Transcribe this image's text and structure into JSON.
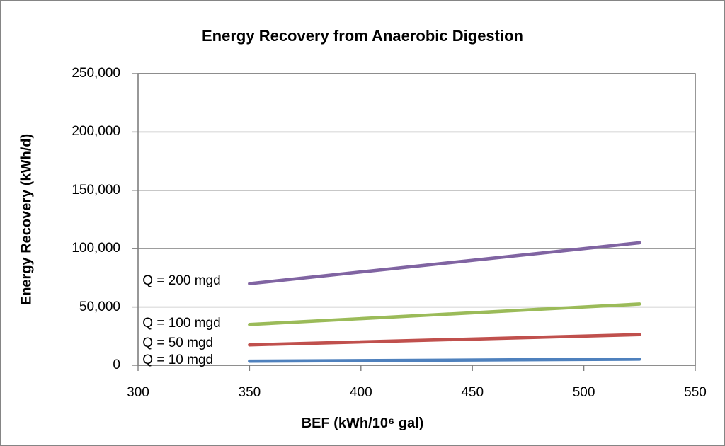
{
  "frame": {
    "background": "#ffffff",
    "border_color": "#858585"
  },
  "chart_data": {
    "type": "line",
    "title": "Energy Recovery from Anaerobic Digestion",
    "xlabel": "BEF (kWh/10⁶ gal)",
    "ylabel": "Energy Recovery (kWh/d)",
    "xlim": [
      300,
      550
    ],
    "ylim": [
      0,
      250000
    ],
    "grid": "horizontal-major",
    "legend_position": "inline-labels-left-of-lines",
    "x": [
      350,
      525
    ],
    "xticks": [
      {
        "value": 300,
        "label": "300"
      },
      {
        "value": 350,
        "label": "350"
      },
      {
        "value": 400,
        "label": "400"
      },
      {
        "value": 450,
        "label": "450"
      },
      {
        "value": 500,
        "label": "500"
      },
      {
        "value": 550,
        "label": "550"
      }
    ],
    "yticks": [
      {
        "value": 0,
        "label": "0"
      },
      {
        "value": 50000,
        "label": "50,000"
      },
      {
        "value": 100000,
        "label": "100,000"
      },
      {
        "value": 150000,
        "label": "150,000"
      },
      {
        "value": 200000,
        "label": "200,000"
      },
      {
        "value": 250000,
        "label": "250,000"
      }
    ],
    "series": [
      {
        "name": "Q = 200 mgd",
        "color": "#8064A2",
        "values": [
          70000,
          105000
        ],
        "label_anchor": {
          "x": 302,
          "y": 72500
        }
      },
      {
        "name": "Q = 100 mgd",
        "color": "#9BBB59",
        "values": [
          35000,
          52500
        ],
        "label_anchor": {
          "x": 302,
          "y": 35800
        }
      },
      {
        "name": "Q = 50 mgd",
        "color": "#C0504D",
        "values": [
          17500,
          26250
        ],
        "label_anchor": {
          "x": 302,
          "y": 18800
        }
      },
      {
        "name": "Q = 10 mgd",
        "color": "#4F81BD",
        "values": [
          3500,
          5250
        ],
        "label_anchor": {
          "x": 302,
          "y": 4300
        }
      }
    ],
    "colors": {
      "gridline": "#8F8F8F",
      "axis": "#7F7F7F",
      "text": "#000000",
      "plot_background": "#ffffff"
    }
  }
}
